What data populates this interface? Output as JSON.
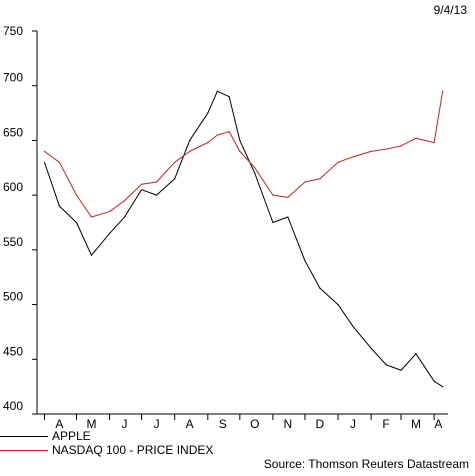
{
  "header": {
    "date": "9/4/13"
  },
  "footer": {
    "source": "Source: Thomson Reuters Datastream"
  },
  "colors": {
    "apple": "#000000",
    "nasdaq": "#cc1f1f"
  },
  "chart_data": {
    "type": "line",
    "ylim": [
      400,
      750
    ],
    "yticks": [
      400,
      450,
      500,
      550,
      600,
      650,
      700,
      750
    ],
    "x": [
      "2012-04-01",
      "2012-04-15",
      "2012-05-01",
      "2012-05-15",
      "2012-06-01",
      "2012-06-15",
      "2012-07-01",
      "2012-07-15",
      "2012-08-01",
      "2012-08-15",
      "2012-09-01",
      "2012-09-10",
      "2012-09-21",
      "2012-10-01",
      "2012-10-15",
      "2012-11-01",
      "2012-11-15",
      "2012-12-01",
      "2012-12-15",
      "2013-01-01",
      "2013-01-15",
      "2013-02-01",
      "2013-02-15",
      "2013-03-01",
      "2013-03-15",
      "2013-04-01",
      "2013-04-09"
    ],
    "xlim": [
      "2012-03-25",
      "2013-04-14"
    ],
    "month_ticks": [
      {
        "label": "A",
        "date": "2012-04-15"
      },
      {
        "label": "M",
        "date": "2012-05-15"
      },
      {
        "label": "J",
        "date": "2012-06-15"
      },
      {
        "label": "J",
        "date": "2012-07-15"
      },
      {
        "label": "A",
        "date": "2012-08-15"
      },
      {
        "label": "S",
        "date": "2012-09-15"
      },
      {
        "label": "O",
        "date": "2012-10-15"
      },
      {
        "label": "N",
        "date": "2012-11-15"
      },
      {
        "label": "D",
        "date": "2012-12-15"
      },
      {
        "label": "J",
        "date": "2013-01-15"
      },
      {
        "label": "F",
        "date": "2013-02-15"
      },
      {
        "label": "M",
        "date": "2013-03-15"
      },
      {
        "label": "A",
        "date": "2013-04-05"
      }
    ],
    "series": [
      {
        "name": "APPLE",
        "values": [
          630,
          590,
          575,
          545,
          565,
          580,
          605,
          600,
          615,
          650,
          675,
          695,
          690,
          650,
          620,
          575,
          580,
          540,
          515,
          500,
          480,
          460,
          445,
          440,
          455,
          430,
          425
        ]
      },
      {
        "name": "NASDAQ 100 - PRICE INDEX",
        "values": [
          640,
          630,
          600,
          580,
          585,
          595,
          610,
          612,
          630,
          640,
          648,
          655,
          658,
          640,
          625,
          600,
          598,
          612,
          615,
          630,
          635,
          640,
          642,
          645,
          652,
          648,
          695
        ]
      }
    ]
  }
}
